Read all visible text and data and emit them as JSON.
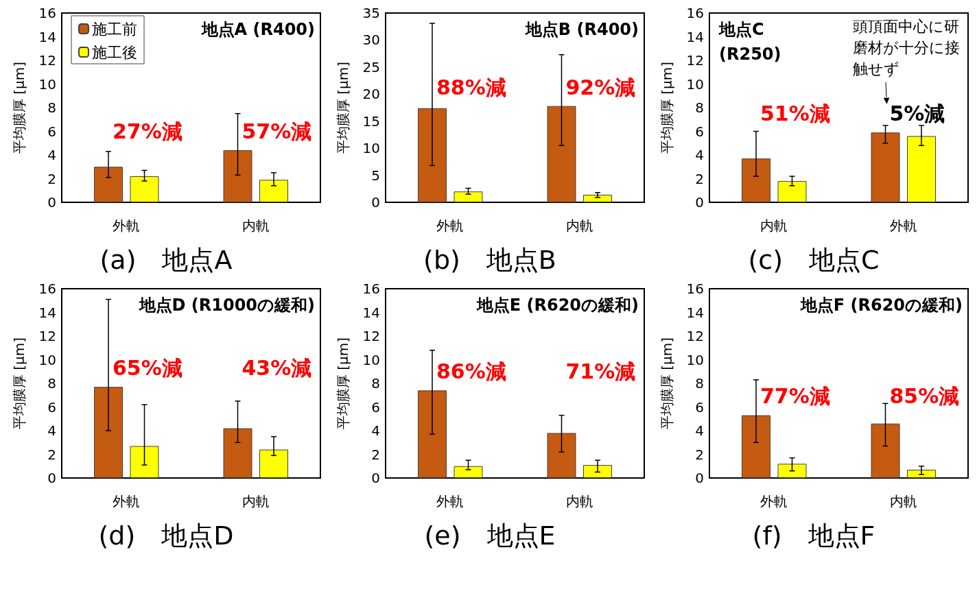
{
  "chart_data": [
    {
      "type": "bar",
      "title": "(a)　地点A",
      "subtitle": "地点A (R400)",
      "ylabel": "平均膜厚 [μm]",
      "categories": [
        "外軌",
        "内軌"
      ],
      "ylim": [
        0,
        16
      ],
      "yticks": [
        0,
        2,
        4,
        6,
        8,
        10,
        12,
        14,
        16
      ],
      "legend": "top left",
      "grid": false,
      "series": [
        {
          "name": "施工前",
          "color": "#c55a11",
          "values": [
            3.0,
            4.4
          ],
          "errors": [
            [
              2.1,
              4.3
            ],
            [
              2.3,
              7.5
            ]
          ]
        },
        {
          "name": "施工後",
          "color": "#ffff00",
          "values": [
            2.2,
            1.9
          ],
          "errors": [
            [
              1.8,
              2.7
            ],
            [
              1.4,
              2.5
            ]
          ]
        }
      ],
      "annotations": [
        "27%減",
        "57%減"
      ]
    },
    {
      "type": "bar",
      "title": "(b)　地点B",
      "subtitle": "地点B (R400)",
      "ylabel": "平均膜厚 [μm]",
      "categories": [
        "外軌",
        "内軌"
      ],
      "ylim": [
        0,
        35
      ],
      "yticks": [
        0,
        5,
        10,
        15,
        20,
        25,
        30,
        35
      ],
      "legend": false,
      "grid": false,
      "series": [
        {
          "color": "#c55a11",
          "values": [
            17.4,
            17.8
          ],
          "errors": [
            [
              6.8,
              33.1
            ],
            [
              10.5,
              27.3
            ]
          ]
        },
        {
          "color": "#ffff00",
          "values": [
            2.0,
            1.4
          ],
          "errors": [
            [
              1.5,
              2.6
            ],
            [
              0.9,
              1.8
            ]
          ]
        }
      ],
      "annotations": [
        "88%減",
        "92%減"
      ]
    },
    {
      "type": "bar",
      "title": "(c)　地点C",
      "subtitle": "地点C\n(R250)",
      "ylabel": "平均膜厚 [μm]",
      "categories": [
        "内軌",
        "外軌"
      ],
      "ylim": [
        0,
        16
      ],
      "yticks": [
        0,
        2,
        4,
        6,
        8,
        10,
        12,
        14,
        16
      ],
      "legend": false,
      "grid": false,
      "series": [
        {
          "color": "#c55a11",
          "values": [
            3.7,
            5.9
          ],
          "errors": [
            [
              2.2,
              6.0
            ],
            [
              5.0,
              6.5
            ]
          ]
        },
        {
          "color": "#ffff00",
          "values": [
            1.8,
            5.6
          ],
          "errors": [
            [
              1.4,
              2.2
            ],
            [
              4.8,
              6.5
            ]
          ]
        }
      ],
      "annotations": [
        "51%減",
        "5%減",
        "頭頂面中心に研磨材が十分に接触せず"
      ]
    },
    {
      "type": "bar",
      "title": "(d)　地点D",
      "subtitle": "地点D (R1000の緩和)",
      "ylabel": "平均膜厚 [μm]",
      "categories": [
        "外軌",
        "内軌"
      ],
      "ylim": [
        0,
        16
      ],
      "yticks": [
        0,
        2,
        4,
        6,
        8,
        10,
        12,
        14,
        16
      ],
      "legend": false,
      "grid": false,
      "series": [
        {
          "color": "#c55a11",
          "values": [
            7.7,
            4.2
          ],
          "errors": [
            [
              4.0,
              15.1
            ],
            [
              3.0,
              6.5
            ]
          ]
        },
        {
          "color": "#ffff00",
          "values": [
            2.7,
            2.4
          ],
          "errors": [
            [
              1.1,
              6.2
            ],
            [
              1.9,
              3.5
            ]
          ]
        }
      ],
      "annotations": [
        "65%減",
        "43%減"
      ]
    },
    {
      "type": "bar",
      "title": "(e)　地点E",
      "subtitle": "地点E (R620の緩和)",
      "ylabel": "平均膜厚 [μm]",
      "categories": [
        "外軌",
        "内軌"
      ],
      "ylim": [
        0,
        16
      ],
      "yticks": [
        0,
        2,
        4,
        6,
        8,
        10,
        12,
        14,
        16
      ],
      "legend": false,
      "grid": false,
      "series": [
        {
          "color": "#c55a11",
          "values": [
            7.4,
            3.8
          ],
          "errors": [
            [
              3.7,
              10.8
            ],
            [
              2.2,
              5.3
            ]
          ]
        },
        {
          "color": "#ffff00",
          "values": [
            1.0,
            1.1
          ],
          "errors": [
            [
              0.7,
              1.5
            ],
            [
              0.5,
              1.5
            ]
          ]
        }
      ],
      "annotations": [
        "86%減",
        "71%減"
      ]
    },
    {
      "type": "bar",
      "title": "(f)　地点F",
      "subtitle": "地点F (R620の緩和)",
      "ylabel": "平均膜厚 [μm]",
      "categories": [
        "外軌",
        "内軌"
      ],
      "ylim": [
        0,
        16
      ],
      "yticks": [
        0,
        2,
        4,
        6,
        8,
        10,
        12,
        14,
        16
      ],
      "legend": false,
      "grid": false,
      "series": [
        {
          "color": "#c55a11",
          "values": [
            5.3,
            4.6
          ],
          "errors": [
            [
              3.0,
              8.3
            ],
            [
              2.7,
              6.3
            ]
          ]
        },
        {
          "color": "#ffff00",
          "values": [
            1.2,
            0.7
          ],
          "errors": [
            [
              0.6,
              1.7
            ],
            [
              0.3,
              1.0
            ]
          ]
        }
      ],
      "annotations": [
        "77%減",
        "85%減"
      ]
    }
  ]
}
